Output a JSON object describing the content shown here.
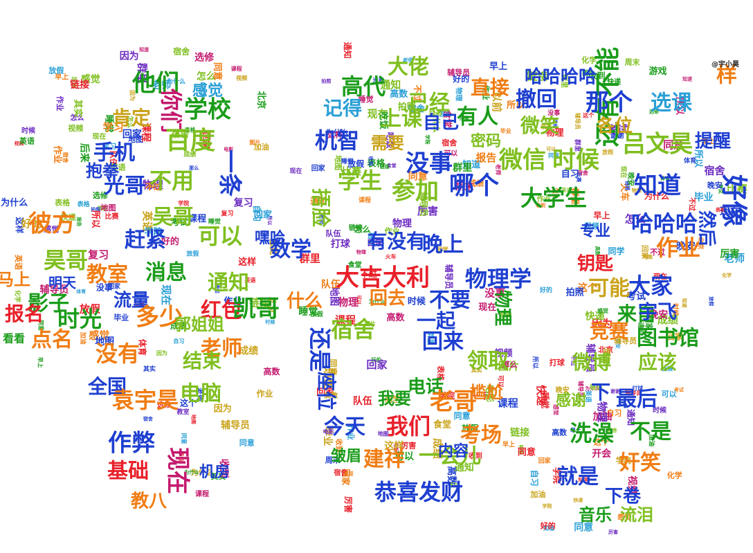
{
  "watermark": "@宇小昊",
  "palette": [
    "#e8202a",
    "#1a9c1a",
    "#7fbf1f",
    "#1e3fd0",
    "#f07d14",
    "#2a9fd6",
    "#c41a6e",
    "#caa31a",
    "#6b2bc0"
  ],
  "words": [
    {
      "t": "还有不能",
      "c": 1
    },
    {
      "t": "他们",
      "c": 1
    },
    {
      "t": "大佬",
      "c": 2
    },
    {
      "t": "学校",
      "c": 1
    },
    {
      "t": "感觉",
      "c": 5
    },
    {
      "t": "你们",
      "c": 6
    },
    {
      "t": "高代",
      "c": 1
    },
    {
      "t": "直接",
      "c": 4
    },
    {
      "t": "哈哈哈哈",
      "c": 3
    },
    {
      "t": "那个",
      "c": 3
    },
    {
      "t": "选课",
      "c": 5
    },
    {
      "t": "样",
      "c": 4
    },
    {
      "t": "好像",
      "c": 3
    },
    {
      "t": "百度",
      "c": 2
    },
    {
      "t": "肯定",
      "c": 7
    },
    {
      "t": "手机",
      "c": 3
    },
    {
      "t": "已经",
      "c": 2
    },
    {
      "t": "有人",
      "c": 1
    },
    {
      "t": "撤回",
      "c": 3
    },
    {
      "t": "吕文昊",
      "c": 2
    },
    {
      "t": "提醒",
      "c": 3
    },
    {
      "t": "记得",
      "c": 5
    },
    {
      "t": "上课",
      "c": 2
    },
    {
      "t": "机智",
      "c": 3
    },
    {
      "t": "自己",
      "c": 3
    },
    {
      "t": "需要",
      "c": 7
    },
    {
      "t": "没事",
      "c": 3
    },
    {
      "t": "密码",
      "c": 2
    },
    {
      "t": "微信",
      "c": 2
    },
    {
      "t": "时候",
      "c": 2
    },
    {
      "t": "微笑",
      "c": 2
    },
    {
      "t": "各位",
      "c": 7
    },
    {
      "t": "抱拳",
      "c": 3
    },
    {
      "t": "光哥",
      "c": 3
    },
    {
      "t": "不用",
      "c": 2
    },
    {
      "t": "一条",
      "c": 3
    },
    {
      "t": "学生",
      "c": 2
    },
    {
      "t": "参加",
      "c": 2
    },
    {
      "t": "哪个",
      "c": 3
    },
    {
      "t": "大学生",
      "c": 1
    },
    {
      "t": "知道",
      "c": 3
    },
    {
      "t": "哈哈哈",
      "c": 3
    },
    {
      "t": "然后",
      "c": 3
    },
    {
      "t": "彼方",
      "c": 4
    },
    {
      "t": "吴哥",
      "c": 2
    },
    {
      "t": "赶紧",
      "c": 3
    },
    {
      "t": "可以",
      "c": 2
    },
    {
      "t": "嘿哈",
      "c": 3
    },
    {
      "t": "捂脸",
      "c": 2
    },
    {
      "t": "有没有",
      "c": 3
    },
    {
      "t": "晚上",
      "c": 3
    },
    {
      "t": "专业",
      "c": 3
    },
    {
      "t": "钥匙",
      "c": 0
    },
    {
      "t": "作业",
      "c": 4
    },
    {
      "t": "昊哥",
      "c": 2
    },
    {
      "t": "消息",
      "c": 1
    },
    {
      "t": "通知",
      "c": 2
    },
    {
      "t": "教室",
      "c": 4
    },
    {
      "t": "数学",
      "c": 3
    },
    {
      "t": "大吉大利",
      "c": 0
    },
    {
      "t": "物理学",
      "c": 3
    },
    {
      "t": "可能",
      "c": 7
    },
    {
      "t": "大家",
      "c": 3
    },
    {
      "t": "马上",
      "c": 4
    },
    {
      "t": "明天",
      "c": 3
    },
    {
      "t": "影子",
      "c": 1
    },
    {
      "t": "流量",
      "c": 3
    },
    {
      "t": "红包",
      "c": 0
    },
    {
      "t": "什么",
      "c": 4
    },
    {
      "t": "凯哥",
      "c": 1
    },
    {
      "t": "回去",
      "c": 4
    },
    {
      "t": "不要",
      "c": 3
    },
    {
      "t": "宿舍",
      "c": 2
    },
    {
      "t": "物理",
      "c": 1
    },
    {
      "t": "来自",
      "c": 1
    },
    {
      "t": "宇飞",
      "c": 3
    },
    {
      "t": "报名",
      "c": 0
    },
    {
      "t": "时光",
      "c": 1
    },
    {
      "t": "多少",
      "c": 4
    },
    {
      "t": "郭姐姐",
      "c": 2
    },
    {
      "t": "还是",
      "c": 3
    },
    {
      "t": "一起",
      "c": 3
    },
    {
      "t": "回来",
      "c": 3
    },
    {
      "t": "竞赛",
      "c": 4
    },
    {
      "t": "图书馆",
      "c": 1
    },
    {
      "t": "点名",
      "c": 4
    },
    {
      "t": "老师",
      "c": 4
    },
    {
      "t": "没有",
      "c": 4
    },
    {
      "t": "结束",
      "c": 2
    },
    {
      "t": "看看",
      "c": 1
    },
    {
      "t": "领取",
      "c": 2
    },
    {
      "t": "微博",
      "c": 2
    },
    {
      "t": "应该",
      "c": 2
    },
    {
      "t": "全国",
      "c": 3
    },
    {
      "t": "电脑",
      "c": 2
    },
    {
      "t": "座位",
      "c": 3
    },
    {
      "t": "电话",
      "c": 1
    },
    {
      "t": "老哥",
      "c": 4
    },
    {
      "t": "下",
      "c": 3
    },
    {
      "t": "最后",
      "c": 3
    },
    {
      "t": "袁宇昊",
      "c": 4
    },
    {
      "t": "我要",
      "c": 1
    },
    {
      "t": "尴尬",
      "c": 4
    },
    {
      "t": "感谢",
      "c": 2
    },
    {
      "t": "作弊",
      "c": 3
    },
    {
      "t": "今天",
      "c": 3
    },
    {
      "t": "我们",
      "c": 0
    },
    {
      "t": "考场",
      "c": 4
    },
    {
      "t": "洗澡",
      "c": 1
    },
    {
      "t": "不是",
      "c": 1
    },
    {
      "t": "基础",
      "c": 0
    },
    {
      "t": "现在",
      "c": 6
    },
    {
      "t": "机房",
      "c": 3
    },
    {
      "t": "建祥",
      "c": 4
    },
    {
      "t": "一会儿",
      "c": 2
    },
    {
      "t": "就是",
      "c": 3
    },
    {
      "t": "奸笑",
      "c": 4
    },
    {
      "t": "恭喜发财",
      "c": 3
    },
    {
      "t": "下卷",
      "c": 3
    },
    {
      "t": "教八",
      "c": 4
    },
    {
      "t": "内容",
      "c": 3
    },
    {
      "t": "皱眉",
      "c": 1
    },
    {
      "t": "音乐",
      "c": 1
    },
    {
      "t": "流泪",
      "c": 2
    }
  ]
}
